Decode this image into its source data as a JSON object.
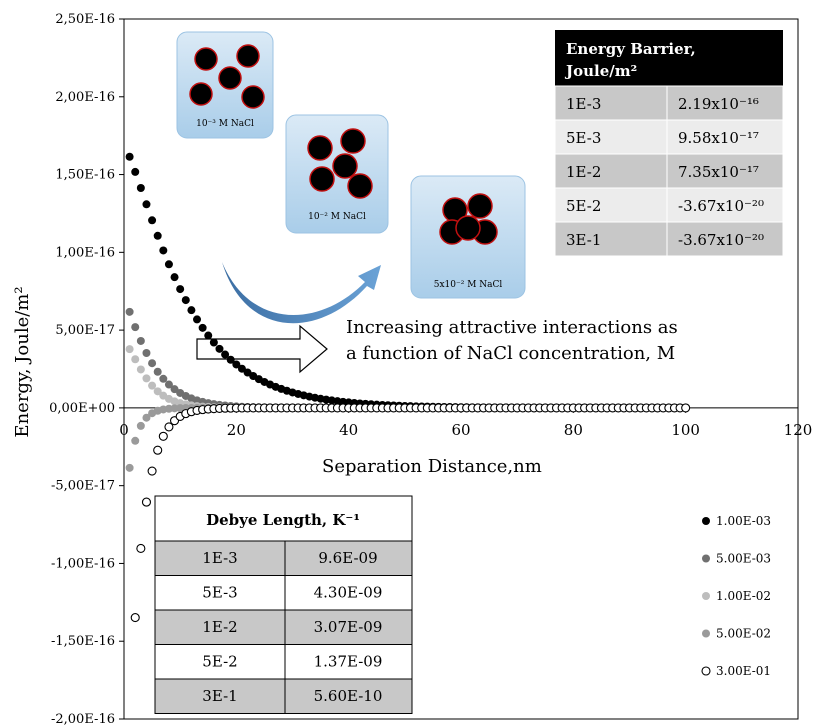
{
  "chart_data": {
    "type": "scatter",
    "xlabel": "Separation Distance,nm",
    "ylabel": "Energy, Joule/m²",
    "xlim": [
      0,
      120
    ],
    "ylim": [
      -2e-16,
      2.5e-16
    ],
    "x_ticks": [
      0,
      20,
      40,
      60,
      80,
      100,
      120
    ],
    "y_ticks": [
      "2,50E-16",
      "2,00E-16",
      "1,50E-16",
      "1,00E-16",
      "5,00E-17",
      "0,00E+00",
      "-5,00E-17",
      "-1,00E-16",
      "-1,50E-16",
      "-2,00E-16"
    ],
    "grid": false,
    "legend_position": "right",
    "series": [
      {
        "name": "1.00E-03",
        "color": "#000000",
        "marker": "filled",
        "kappa": 0.104,
        "A": 2.25e-16,
        "B": 5.5e-17,
        "lam": 3.5
      },
      {
        "name": "5.00E-03",
        "color": "#707070",
        "marker": "filled",
        "kappa": 0.233,
        "A": 1.02e-16,
        "B": 3e-17,
        "lam": 2.2
      },
      {
        "name": "1.00E-02",
        "color": "#bdbdbd",
        "marker": "filled",
        "kappa": 0.326,
        "A": 8.2e-17,
        "B": 4e-17,
        "lam": 1.6
      },
      {
        "name": "5.00E-02",
        "color": "#9a9a9a",
        "marker": "filled",
        "kappa": 0.73,
        "A": 2e-17,
        "B": 9e-17,
        "lam": 1.6
      },
      {
        "name": "3.00E-01",
        "color": "#000000",
        "marker": "open",
        "kappa": 1.79,
        "A": 0,
        "B": 3e-16,
        "lam": 2.5
      }
    ],
    "annotation": [
      "Increasing attractive interactions as",
      "a function of NaCl concentration, M"
    ],
    "insets": [
      "10⁻³ M NaCl",
      "10⁻² M NaCl",
      "5x10⁻² M NaCl"
    ]
  },
  "energy_table": {
    "header_line1": "Energy Barrier,",
    "header_line2": "Joule/m²",
    "rows": [
      [
        "1E-3",
        "2.19x10⁻¹⁶"
      ],
      [
        "5E-3",
        "9.58x10⁻¹⁷"
      ],
      [
        "1E-2",
        "7.35x10⁻¹⁷"
      ],
      [
        "5E-2",
        "-3.67x10⁻²⁰"
      ],
      [
        "3E-1",
        "-3.67x10⁻²⁰"
      ]
    ]
  },
  "debye_table": {
    "header": "Debye Length, K⁻¹",
    "rows": [
      [
        "1E-3",
        "9.6E-09"
      ],
      [
        "5E-3",
        "4.30E-09"
      ],
      [
        "1E-2",
        "3.07E-09"
      ],
      [
        "5E-2",
        "1.37E-09"
      ],
      [
        "3E-1",
        "5.60E-10"
      ]
    ]
  },
  "colors": {
    "shaded_row": "#c8c8c8",
    "header_bg": "#000000",
    "inset_bg": "#bcd9ef",
    "arrow_blue": "#4f87be"
  }
}
